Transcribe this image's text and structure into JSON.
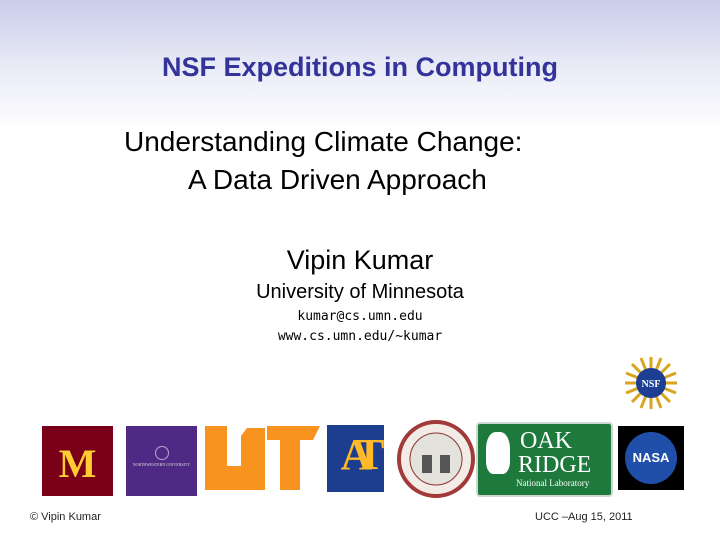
{
  "header": {
    "title": "NSF Expeditions in Computing"
  },
  "slide": {
    "title_line1": "Understanding Climate Change:",
    "title_line2": "A Data Driven Approach",
    "author": "Vipin Kumar",
    "affiliation": "University of Minnesota",
    "email": "kumar@cs.umn.edu",
    "website": "www.cs.umn.edu/~kumar"
  },
  "logos": {
    "nsf": "NSF",
    "umn": "M",
    "northwestern": "NORTHWESTERN UNIVERSITY",
    "ut": "UT",
    "ncat": "AT",
    "ncstate": "NORTH CAROLINA STATE UNIVERSITY",
    "oakridge_1": "OAK",
    "oakridge_2": "RIDGE",
    "oakridge_3": "National Laboratory",
    "nasa": "NASA"
  },
  "footer": {
    "left": "© Vipin Kumar",
    "right": "UCC –Aug 15, 2011"
  },
  "colors": {
    "title": "#333399",
    "umn": "#7a0019",
    "northwestern": "#4e2a84",
    "ut": "#f7931e",
    "ncat": "#1d3d8f",
    "oakridge": "#1e7a3c",
    "nasa": "#000000"
  }
}
